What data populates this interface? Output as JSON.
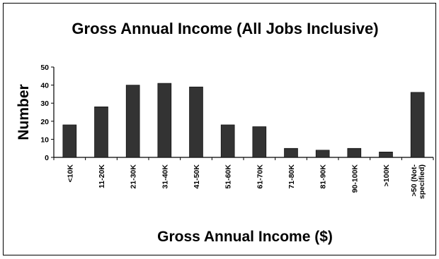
{
  "chart_data": {
    "type": "bar",
    "title": "Gross Annual Income (All Jobs Inclusive)",
    "xlabel": "Gross Annual Income ($)",
    "ylabel": "Number",
    "ylim": [
      0,
      50
    ],
    "yticks": [
      0,
      10,
      20,
      30,
      40,
      50
    ],
    "grid": false,
    "legend": "none",
    "bar_color": "#333333",
    "categories": [
      "<10K",
      "11-20K",
      "21-30K",
      "31-40K",
      "41-50K",
      "51-60K",
      "61-70K",
      "71-80K",
      "81-90K",
      "90-100K",
      ">100K",
      ">50 (Not-specified)"
    ],
    "category_lines": [
      [
        "<10K"
      ],
      [
        "11-20K"
      ],
      [
        "21-30K"
      ],
      [
        "31-40K"
      ],
      [
        "41-50K"
      ],
      [
        "51-60K"
      ],
      [
        "61-70K"
      ],
      [
        "71-80K"
      ],
      [
        "81-90K"
      ],
      [
        "90-100K"
      ],
      [
        ">100K"
      ],
      [
        ">50 (Not-",
        "specified)"
      ]
    ],
    "values": [
      18,
      28,
      40,
      41,
      39,
      18,
      17,
      5,
      4,
      5,
      3,
      36
    ]
  }
}
